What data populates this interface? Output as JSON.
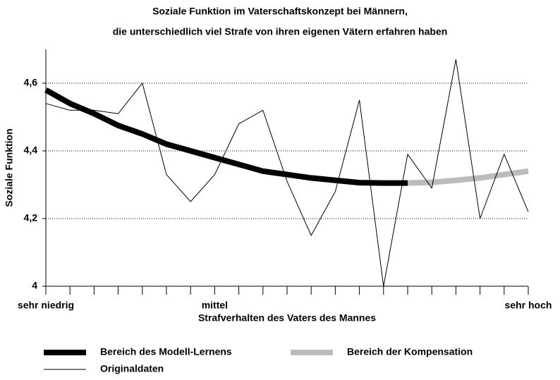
{
  "chart_data": {
    "type": "line",
    "title": [
      "Soziale Funktion im Vaterschaftskonzept bei Männern,",
      "die unterschiedlich viel Strafe von ihren eigenen Vätern erfahren haben"
    ],
    "xlabel": "Strafverhalten des Vaters des Mannes",
    "ylabel": "Soziale Funktion",
    "categories": [
      "sehr niedrig",
      null,
      null,
      null,
      null,
      null,
      null,
      "mittel",
      null,
      null,
      null,
      null,
      null,
      null,
      null,
      null,
      null,
      null,
      null,
      null,
      "sehr hoch"
    ],
    "series": [
      {
        "name": "Bereich des Modell-Lernens",
        "color": "#000000",
        "width": 8,
        "values": [
          4.58,
          4.54,
          4.51,
          4.475,
          4.45,
          4.42,
          4.4,
          4.38,
          4.36,
          4.34,
          4.33,
          4.32,
          4.313,
          4.306,
          4.305,
          4.305,
          null,
          null,
          null,
          null,
          null
        ]
      },
      {
        "name": "Bereich der Kompensation",
        "color": "#bbbbbb",
        "width": 8,
        "values": [
          null,
          null,
          null,
          null,
          null,
          null,
          null,
          null,
          null,
          null,
          null,
          null,
          null,
          null,
          null,
          4.305,
          4.307,
          4.313,
          4.32,
          4.33,
          4.34
        ]
      },
      {
        "name": "Originaldaten",
        "color": "#000000",
        "width": 1,
        "values": [
          4.54,
          4.52,
          4.52,
          4.51,
          4.6,
          4.33,
          4.25,
          4.33,
          4.48,
          4.52,
          4.31,
          4.15,
          4.28,
          4.55,
          4.0,
          4.39,
          4.29,
          4.67,
          4.2,
          4.39,
          4.22
        ]
      }
    ],
    "ylim": [
      4,
      4.7
    ],
    "yticks": [
      4,
      {
        "value": 4.2,
        "label": "4,2"
      },
      {
        "value": 4.4,
        "label": "4,4"
      },
      {
        "value": 4.6,
        "label": "4,6"
      }
    ],
    "grid": true
  }
}
